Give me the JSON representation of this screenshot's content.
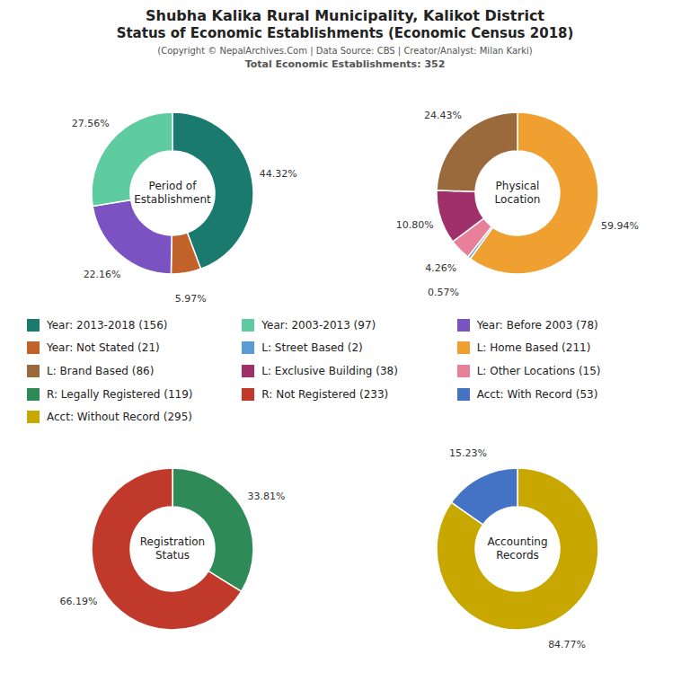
{
  "title": "Shubha Kalika Rural Municipality, Kalikot District\nStatus of Economic Establishments (Economic Census 2018)",
  "subtitle": "(Copyright © NepalArchives.Com | Data Source: CBS | Creator/Analyst: Milan Karki)",
  "annotations": [
    "Total Economic Establishments: 352"
  ],
  "legend_entries": [
    {
      "name": "Year: 2013-2018 (156)",
      "color": "#1a7a6e"
    },
    {
      "name": "Year: 2003-2013 (97)",
      "color": "#5ecba1"
    },
    {
      "name": "Year: Before 2003 (78)",
      "color": "#7b52c1"
    },
    {
      "name": "Year: Not Stated (21)",
      "color": "#c0622a"
    },
    {
      "name": "L: Street Based (2)",
      "color": "#5b9bd5"
    },
    {
      "name": "L: Home Based (211)",
      "color": "#f0a030"
    },
    {
      "name": "L: Brand Based (86)",
      "color": "#9b6a3c"
    },
    {
      "name": "L: Exclusive Building (38)",
      "color": "#a0306a"
    },
    {
      "name": "L: Other Locations (15)",
      "color": "#e88099"
    },
    {
      "name": "R: Legally Registered (119)",
      "color": "#2e8b57"
    },
    {
      "name": "R: Not Registered (233)",
      "color": "#c0392b"
    },
    {
      "name": "Acct: With Record (53)",
      "color": "#4472c4"
    },
    {
      "name": "Acct: Without Record (295)",
      "color": "#c8a800"
    }
  ],
  "chart_data": [
    {
      "type": "pie",
      "title": "Period of\nEstablishment",
      "values": [
        44.32,
        5.97,
        22.16,
        27.56
      ],
      "value_labels": [
        "44.32%",
        "5.97%",
        "22.16%",
        "27.56%"
      ],
      "colors": [
        "#1a7a6e",
        "#c0622a",
        "#7b52c1",
        "#5ecba1"
      ]
    },
    {
      "type": "pie",
      "title": "Physical\nLocation",
      "values": [
        59.94,
        0.57,
        4.26,
        10.8,
        24.43
      ],
      "value_labels": [
        "59.94%",
        "0.57%",
        "4.26%",
        "10.80%",
        "24.43%"
      ],
      "colors": [
        "#f0a030",
        "#5b9bd5",
        "#e88099",
        "#a0306a",
        "#9b6a3c"
      ]
    },
    {
      "type": "pie",
      "title": "Registration\nStatus",
      "values": [
        33.81,
        66.19
      ],
      "value_labels": [
        "33.81%",
        "66.19%"
      ],
      "colors": [
        "#2e8b57",
        "#c0392b"
      ]
    },
    {
      "type": "pie",
      "title": "Accounting\nRecords",
      "values": [
        84.77,
        15.23
      ],
      "value_labels": [
        "84.77%",
        "15.23%"
      ],
      "colors": [
        "#c8a800",
        "#4472c4"
      ]
    }
  ]
}
